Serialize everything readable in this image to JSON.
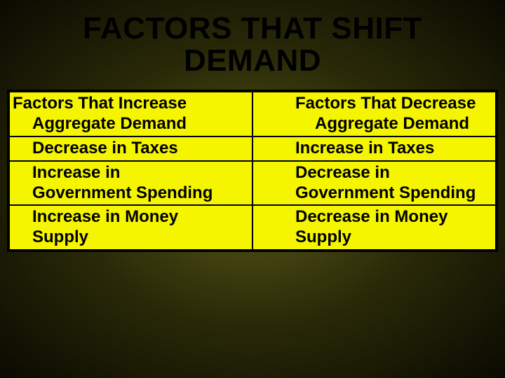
{
  "slide": {
    "title_line1": "FACTORS THAT SHIFT",
    "title_line2": "DEMAND",
    "title_fontsize": 44,
    "title_color": "#000000",
    "background_gradient_inner": "#5a5a1a",
    "background_gradient_mid": "#2a2a08",
    "background_gradient_outer": "#0a0a02"
  },
  "table": {
    "type": "table",
    "border_color": "#000000",
    "border_width": 4,
    "cell_background": "#f5f500",
    "cell_text_color": "#000000",
    "cell_fontsize": 24,
    "cell_fontweight": "bold",
    "divider_color": "#000000",
    "divider_width": 2,
    "columns": [
      {
        "header_line1": "Factors That Increase",
        "header_line2": "Aggregate Demand",
        "rows": [
          {
            "line1": "Decrease in Taxes",
            "line2": ""
          },
          {
            "line1": "Increase in",
            "line2": "Government Spending"
          },
          {
            "line1": "Increase in Money",
            "line2": "Supply"
          }
        ]
      },
      {
        "header_line1": "Factors That Decrease",
        "header_line2": "Aggregate Demand",
        "rows": [
          {
            "line1": "Increase in Taxes",
            "line2": ""
          },
          {
            "line1": "Decrease in",
            "line2": "Government Spending"
          },
          {
            "line1": "Decrease  in Money",
            "line2": "Supply"
          }
        ]
      }
    ]
  }
}
